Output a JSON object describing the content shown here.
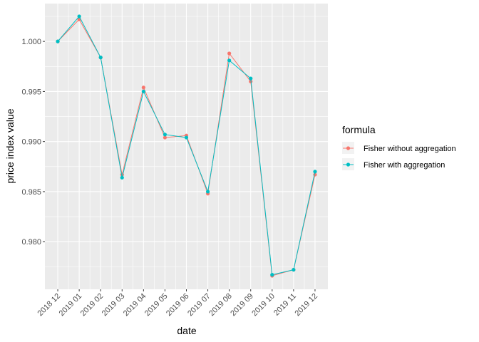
{
  "chart_data": {
    "type": "line",
    "title": "",
    "xlabel": "date",
    "ylabel": "price index value",
    "categories": [
      "2018 12",
      "2019 01",
      "2019 02",
      "2019 03",
      "2019 04",
      "2019 05",
      "2019 06",
      "2019 07",
      "2019 08",
      "2019 09",
      "2019 10",
      "2019 11",
      "2019 12"
    ],
    "yticks": [
      "0.980",
      "0.985",
      "0.990",
      "0.995",
      "1.000"
    ],
    "ylim": [
      0.97525,
      1.00378
    ],
    "grid": true,
    "legend": {
      "title": "formula",
      "placement": "right"
    },
    "series": [
      {
        "name": "Fisher without aggregation",
        "color": "#F8766D",
        "values": [
          1.0,
          1.0022,
          0.9984,
          0.9867,
          0.9954,
          0.9904,
          0.9906,
          0.9848,
          0.9988,
          0.996,
          0.9766,
          0.9772,
          0.9867
        ]
      },
      {
        "name": "Fisher with aggregation",
        "color": "#00BFC4",
        "values": [
          1.0,
          1.0025,
          0.9984,
          0.9864,
          0.995,
          0.9907,
          0.9904,
          0.985,
          0.9981,
          0.9963,
          0.9767,
          0.9772,
          0.987
        ]
      }
    ]
  },
  "colors": {
    "panel": "#EBEBEB",
    "grid": "#FFFFFF"
  }
}
